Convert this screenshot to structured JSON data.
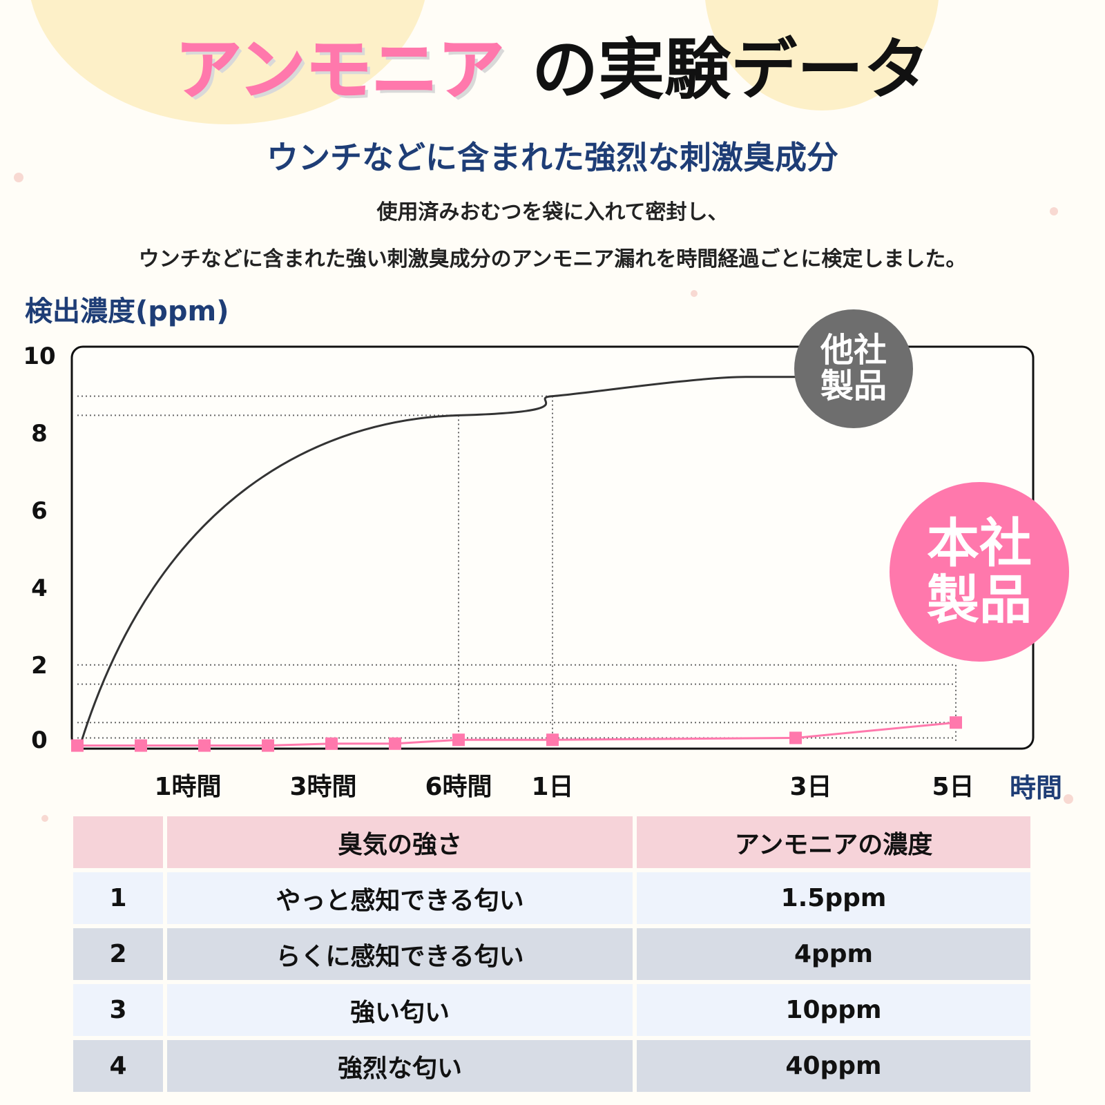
{
  "title": {
    "highlight": "アンモニア",
    "rest": "の実験データ"
  },
  "subtitle": "ウンチなどに含まれた強烈な刺激臭成分",
  "description": [
    "使用済みおむつを袋に入れて密封し、",
    "ウンチなどに含まれた強い刺激臭成分のアンモニア漏れを時間経過ごとに検定しました。"
  ],
  "badges": {
    "other": [
      "他社",
      "製品"
    ],
    "ours": [
      "本社",
      "製品"
    ]
  },
  "colors": {
    "pink": "#ff78ac",
    "gray": "#6e6e6e",
    "navy": "#1e3d76",
    "tableHeader": "#f6d3d9"
  },
  "chart_data": {
    "type": "line",
    "ylabel": "検出濃度(ppm)",
    "xlabel": "時間",
    "ylim": [
      0,
      10
    ],
    "yticks": [
      "10",
      "8",
      "6",
      "4",
      "2",
      "0"
    ],
    "xticks": [
      "1時間",
      "3時間",
      "6時間",
      "1日",
      "3日",
      "5日"
    ],
    "grid": false,
    "series": [
      {
        "name": "他社製品",
        "curve": "smooth",
        "points": [
          {
            "x": 0,
            "y": -0.1
          },
          {
            "x": "6時間",
            "y": 8.5
          },
          {
            "x": "1日",
            "y": 9.0
          },
          {
            "x": "3日",
            "y": 9.5
          }
        ]
      },
      {
        "name": "本社製品",
        "markers": "square",
        "values": [
          -0.1,
          -0.1,
          -0.1,
          -0.1,
          -0.05,
          -0.05,
          0.05,
          0.05,
          0.1,
          0.5
        ]
      }
    ]
  },
  "table": {
    "headers": [
      "",
      "臭気の強さ",
      "アンモニアの濃度"
    ],
    "rows": [
      [
        "1",
        "やっと感知できる匂い",
        "1.5ppm"
      ],
      [
        "2",
        "らくに感知できる匂い",
        "4ppm"
      ],
      [
        "3",
        "強い匂い",
        "10ppm"
      ],
      [
        "4",
        "強烈な匂い",
        "40ppm"
      ]
    ]
  }
}
